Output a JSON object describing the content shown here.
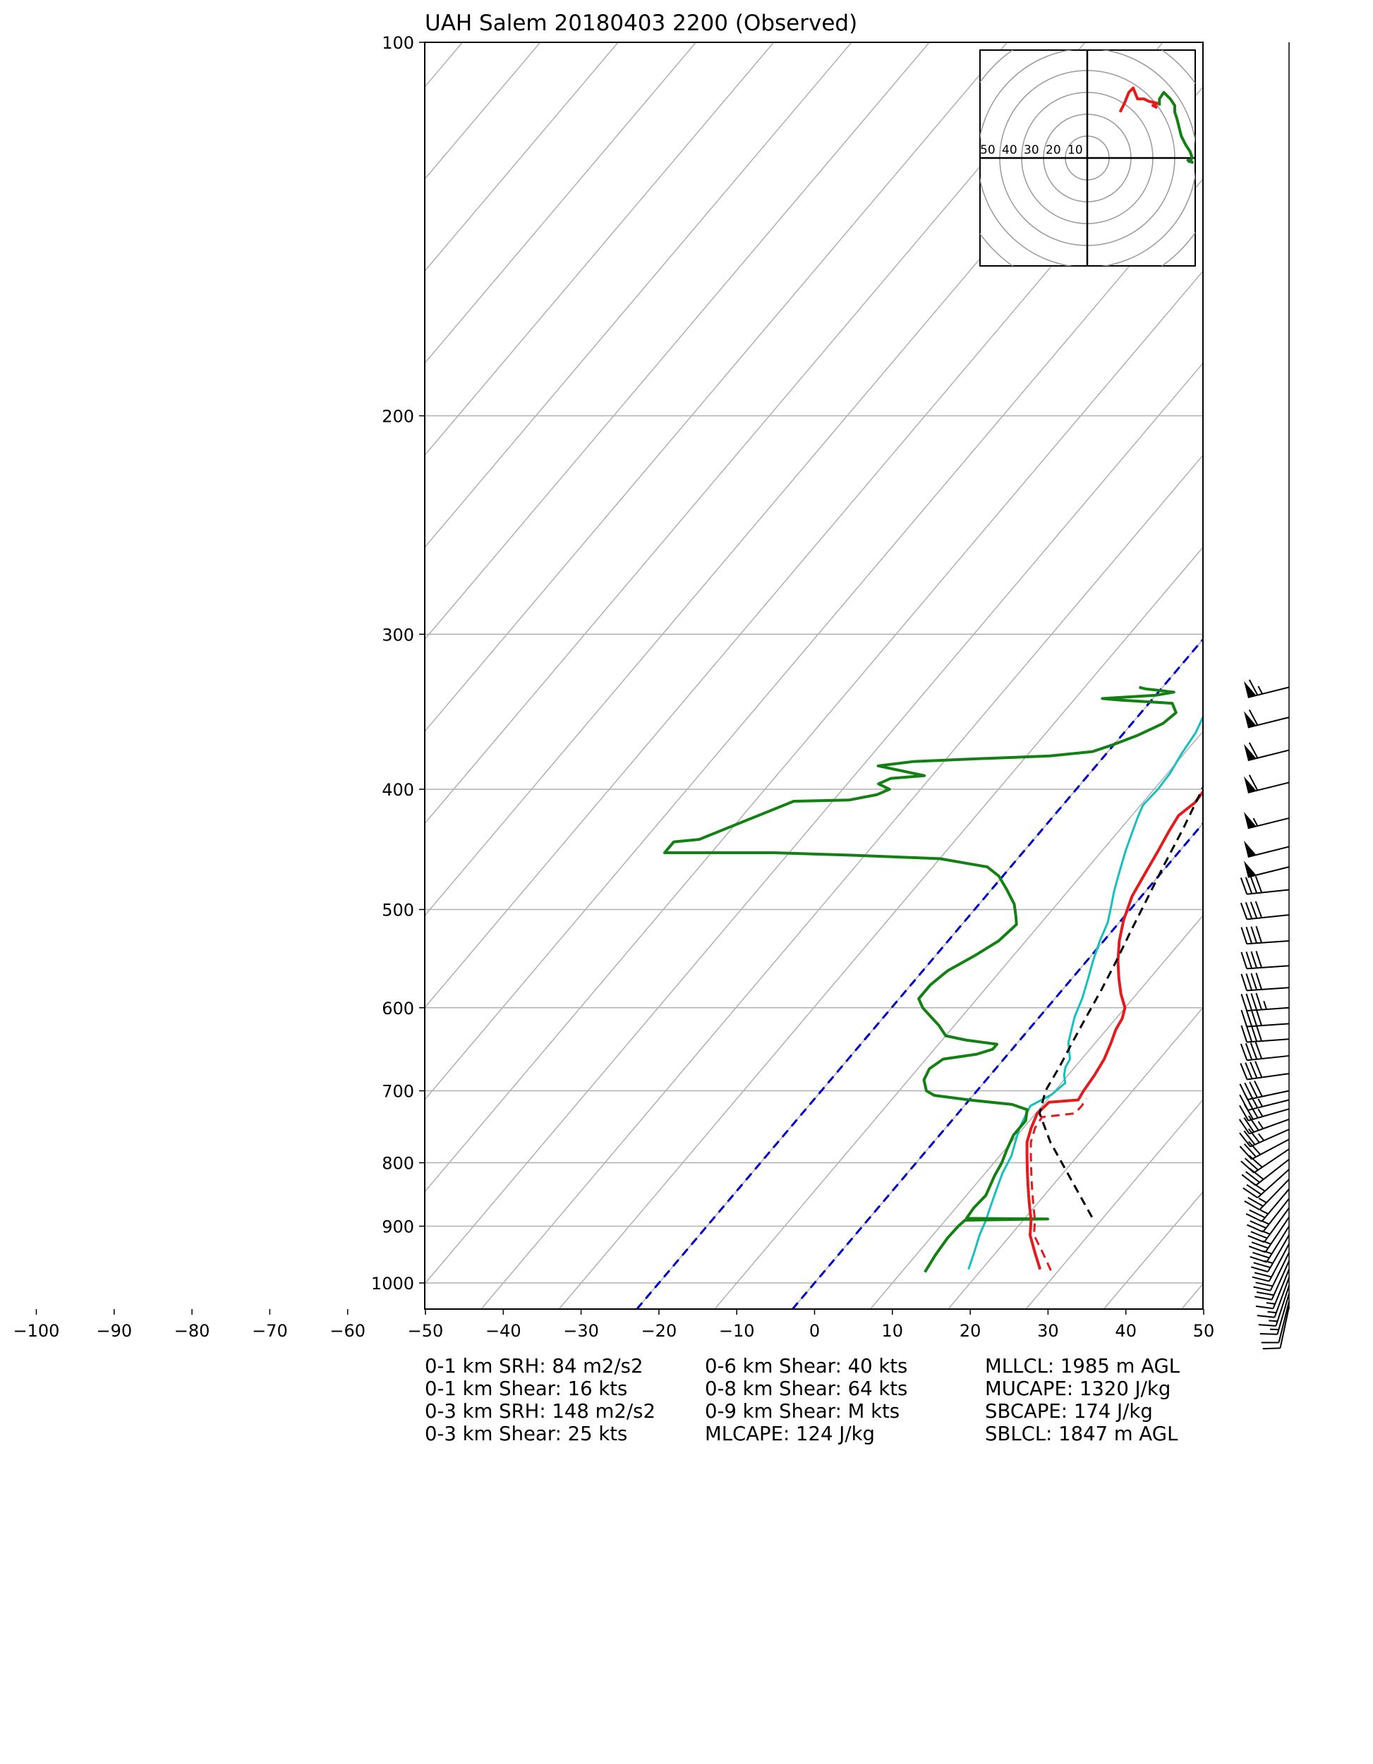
{
  "title": "UAH Salem 20180403 2200   (Observed)",
  "chart_data": {
    "type": "skew-t log-p sounding",
    "title": "UAH Salem 20180403 2200   (Observed)",
    "x_axis": {
      "label": "",
      "range": [
        -100,
        50
      ],
      "ticks": [
        "−100",
        "−90",
        "−80",
        "−70",
        "−60",
        "−50",
        "−40",
        "−30",
        "−20",
        "−10",
        "0",
        "10",
        "20",
        "30",
        "40",
        "50"
      ]
    },
    "y_axis": {
      "label": "",
      "scale": "log",
      "range": [
        1050,
        100
      ],
      "ticks": [
        "100",
        "200",
        "300",
        "400",
        "500",
        "600",
        "700",
        "800",
        "900",
        "1000"
      ]
    },
    "grid": true,
    "colors": {
      "temperature": "#e41a1c",
      "dewpoint": "#138013",
      "wetbulb": "#17bfbf",
      "parcel": "#000000",
      "dashed_lines": "#0000cc",
      "grid": "#b0b0b0"
    },
    "series": [
      {
        "name": "",
        "role": "temperature",
        "color": "#e41a1c",
        "points": [
          [
            27.5,
            975
          ],
          [
            25,
            945
          ],
          [
            22.5,
            915
          ],
          [
            21,
            890
          ],
          [
            19.5,
            870
          ],
          [
            18,
            850
          ],
          [
            16.5,
            830
          ],
          [
            15,
            810
          ],
          [
            13.5,
            790
          ],
          [
            12,
            770
          ],
          [
            11,
            750
          ],
          [
            10.2,
            730
          ],
          [
            10.5,
            715
          ],
          [
            14,
            712
          ],
          [
            13.7,
            700
          ],
          [
            13.4,
            680
          ],
          [
            12.9,
            660
          ],
          [
            12,
            640
          ],
          [
            11.2,
            625
          ],
          [
            10.8,
            612
          ],
          [
            10,
            600
          ],
          [
            8,
            585
          ],
          [
            6,
            568
          ],
          [
            4,
            550
          ],
          [
            2,
            530
          ],
          [
            0.3,
            510
          ],
          [
            -1.2,
            488
          ],
          [
            -2,
            468
          ],
          [
            -2.8,
            448
          ],
          [
            -3.5,
            433
          ],
          [
            -4,
            420
          ],
          [
            -3.3,
            410
          ],
          [
            -3.5,
            398
          ],
          [
            -3.8,
            385
          ],
          [
            -5,
            372
          ],
          [
            -6,
            360
          ],
          [
            -7.2,
            348
          ],
          [
            -7.5,
            338
          ],
          [
            -8.2,
            331
          ]
        ]
      },
      {
        "name": "",
        "role": "temperature_dashed",
        "color": "#e41a1c",
        "points": [
          [
            29,
            977
          ],
          [
            26,
            945
          ],
          [
            23,
            915
          ],
          [
            21.5,
            890
          ],
          [
            20,
            870
          ],
          [
            18.5,
            850
          ],
          [
            17,
            830
          ],
          [
            15.5,
            810
          ],
          [
            14,
            790
          ],
          [
            12.5,
            770
          ],
          [
            11.5,
            750
          ],
          [
            11.2,
            735
          ],
          [
            15,
            730
          ],
          [
            15.1,
            720
          ],
          [
            14.9,
            710
          ]
        ]
      },
      {
        "name": "",
        "role": "dewpoint",
        "color": "#138013",
        "points": [
          [
            13,
            980
          ],
          [
            12.5,
            950
          ],
          [
            12.2,
            920
          ],
          [
            12.3,
            900
          ],
          [
            12.5,
            890
          ],
          [
            23,
            888
          ],
          [
            12.5,
            887
          ],
          [
            12.3,
            870
          ],
          [
            12.5,
            850
          ],
          [
            11.5,
            820
          ],
          [
            11,
            800
          ],
          [
            10.2,
            780
          ],
          [
            9.5,
            760
          ],
          [
            9.5,
            740
          ],
          [
            8.5,
            725
          ],
          [
            6,
            718
          ],
          [
            0,
            712
          ],
          [
            -5,
            706
          ],
          [
            -6.5,
            700
          ],
          [
            -8,
            686
          ],
          [
            -8.5,
            672
          ],
          [
            -7.8,
            660
          ],
          [
            -4,
            654
          ],
          [
            -2.5,
            648
          ],
          [
            -2.5,
            642
          ],
          [
            -7,
            637
          ],
          [
            -10,
            632
          ],
          [
            -12,
            620
          ],
          [
            -14,
            610
          ],
          [
            -16,
            600
          ],
          [
            -17.5,
            590
          ],
          [
            -17.5,
            575
          ],
          [
            -16.8,
            560
          ],
          [
            -15,
            545
          ],
          [
            -13.5,
            530
          ],
          [
            -13,
            514
          ],
          [
            -14,
            506
          ],
          [
            -15.5,
            495
          ],
          [
            -18,
            482
          ],
          [
            -20.5,
            470
          ],
          [
            -23,
            462
          ],
          [
            -30,
            455
          ],
          [
            -42,
            452
          ],
          [
            -52,
            450
          ],
          [
            -58,
            450
          ],
          [
            -62,
            450
          ],
          [
            -66,
            450
          ],
          [
            -66,
            441
          ],
          [
            -63,
            439
          ],
          [
            -55,
            409
          ],
          [
            -48,
            408
          ],
          [
            -45,
            404
          ],
          [
            -44,
            400
          ],
          [
            -46,
            396
          ],
          [
            -45,
            392
          ],
          [
            -41,
            390
          ],
          [
            -46,
            385
          ],
          [
            -48,
            383
          ],
          [
            -44,
            380
          ],
          [
            -36,
            378
          ],
          [
            -27,
            376
          ],
          [
            -22,
            373
          ],
          [
            -20,
            368
          ],
          [
            -18,
            362
          ],
          [
            -16,
            354
          ],
          [
            -15.5,
            347
          ],
          [
            -17,
            341
          ],
          [
            -24,
            339
          ],
          [
            -26.5,
            338
          ],
          [
            -20,
            336
          ],
          [
            -18,
            334
          ],
          [
            -22,
            332
          ],
          [
            -23,
            331
          ]
        ]
      },
      {
        "name": "",
        "role": "wetbulb",
        "color": "#17bfbf",
        "points": [
          [
            18.3,
            975
          ],
          [
            17.2,
            945
          ],
          [
            16,
            915
          ],
          [
            15.2,
            890
          ],
          [
            14.2,
            865
          ],
          [
            13.2,
            840
          ],
          [
            12.2,
            815
          ],
          [
            11.5,
            790
          ],
          [
            10.5,
            770
          ],
          [
            9.5,
            750
          ],
          [
            9,
            735
          ],
          [
            8.5,
            720
          ],
          [
            10,
            705
          ],
          [
            10.5,
            690
          ],
          [
            9.5,
            680
          ],
          [
            8.8,
            670
          ],
          [
            8.5,
            660
          ],
          [
            7.5,
            650
          ],
          [
            6.5,
            640
          ],
          [
            5.5,
            625
          ],
          [
            4.5,
            610
          ],
          [
            3.5,
            590
          ],
          [
            2.2,
            570
          ],
          [
            0.8,
            550
          ],
          [
            -0.5,
            530
          ],
          [
            -1.5,
            512
          ],
          [
            -2.8,
            497
          ],
          [
            -4,
            484
          ],
          [
            -5,
            472
          ],
          [
            -6,
            460
          ],
          [
            -7,
            448
          ],
          [
            -8,
            435
          ],
          [
            -9,
            422
          ],
          [
            -9.7,
            412
          ],
          [
            -9.5,
            400
          ],
          [
            -9.7,
            388
          ],
          [
            -10.3,
            375
          ],
          [
            -10.8,
            360
          ],
          [
            -11.7,
            348
          ],
          [
            -12,
            341
          ],
          [
            -12.6,
            332
          ]
        ]
      },
      {
        "name": "",
        "role": "parcel",
        "color": "#000000",
        "points": [
          [
            28.5,
            885
          ],
          [
            15,
            770
          ],
          [
            10.5,
            730
          ],
          [
            8.8,
            700
          ],
          [
            8,
            670
          ],
          [
            7,
            640
          ],
          [
            6,
            610
          ],
          [
            5,
            580
          ],
          [
            3.8,
            550
          ],
          [
            2.4,
            520
          ],
          [
            1,
            490
          ],
          [
            -0.5,
            460
          ],
          [
            -2,
            430
          ],
          [
            -3.5,
            405
          ],
          [
            -5.2,
            380
          ],
          [
            -7,
            355
          ],
          [
            -8,
            332
          ]
        ]
      }
    ],
    "dashed_lines": [
      {
        "color": "#0000cc",
        "points": [
          [
            -20,
            1050
          ],
          [
            -20,
            100
          ]
        ]
      },
      {
        "color": "#0000cc",
        "points": [
          [
            0,
            1050
          ],
          [
            0,
            100
          ]
        ]
      }
    ],
    "isotherms_C": [
      -180,
      -170,
      -160,
      -150,
      -140,
      -130,
      -120,
      -110,
      -100,
      -90,
      -80,
      -70,
      -60,
      -50,
      -40,
      -30,
      -20,
      -10,
      0,
      10,
      20,
      30,
      40,
      50
    ],
    "hodograph": {
      "rings": [
        10,
        20,
        30,
        40,
        50
      ],
      "ring_labels": [
        "50",
        "40",
        "30",
        "20",
        "10"
      ],
      "red": [
        [
          15,
          21
        ],
        [
          17,
          25
        ],
        [
          19,
          30
        ],
        [
          21,
          32
        ],
        [
          23,
          27
        ],
        [
          26,
          27
        ],
        [
          28,
          26
        ],
        [
          32,
          25
        ],
        [
          30,
          24
        ],
        [
          32,
          23
        ]
      ],
      "green": [
        [
          33,
          24
        ],
        [
          33,
          27
        ],
        [
          35,
          30
        ],
        [
          38,
          27
        ],
        [
          40,
          24
        ],
        [
          40,
          21
        ],
        [
          41,
          18
        ],
        [
          42,
          14
        ],
        [
          43,
          10
        ],
        [
          45,
          6
        ],
        [
          47,
          3
        ],
        [
          48,
          0
        ],
        [
          47,
          -1
        ],
        [
          48,
          -2
        ],
        [
          46,
          -1
        ],
        [
          47,
          -2
        ]
      ]
    },
    "wind_barbs": [
      {
        "p": 331,
        "speed": 65,
        "dir": 256
      },
      {
        "p": 350,
        "speed": 60,
        "dir": 256
      },
      {
        "p": 372,
        "speed": 60,
        "dir": 256
      },
      {
        "p": 395,
        "speed": 60,
        "dir": 256
      },
      {
        "p": 422,
        "speed": 55,
        "dir": 256
      },
      {
        "p": 445,
        "speed": 50,
        "dir": 256
      },
      {
        "p": 462,
        "speed": 50,
        "dir": 256
      },
      {
        "p": 482,
        "speed": 40,
        "dir": 264
      },
      {
        "p": 505,
        "speed": 40,
        "dir": 264
      },
      {
        "p": 530,
        "speed": 40,
        "dir": 266
      },
      {
        "p": 555,
        "speed": 40,
        "dir": 266
      },
      {
        "p": 578,
        "speed": 40,
        "dir": 266
      },
      {
        "p": 600,
        "speed": 45,
        "dir": 266
      },
      {
        "p": 618,
        "speed": 40,
        "dir": 266
      },
      {
        "p": 636,
        "speed": 40,
        "dir": 266
      },
      {
        "p": 656,
        "speed": 40,
        "dir": 264
      },
      {
        "p": 678,
        "speed": 40,
        "dir": 262
      },
      {
        "p": 700,
        "speed": 40,
        "dir": 258
      },
      {
        "p": 712,
        "speed": 35,
        "dir": 256
      },
      {
        "p": 724,
        "speed": 35,
        "dir": 254
      },
      {
        "p": 738,
        "speed": 35,
        "dir": 250
      },
      {
        "p": 752,
        "speed": 35,
        "dir": 246
      },
      {
        "p": 766,
        "speed": 30,
        "dir": 242
      },
      {
        "p": 780,
        "speed": 30,
        "dir": 236
      },
      {
        "p": 795,
        "speed": 30,
        "dir": 232
      },
      {
        "p": 810,
        "speed": 30,
        "dir": 228
      },
      {
        "p": 825,
        "speed": 25,
        "dir": 224
      },
      {
        "p": 840,
        "speed": 25,
        "dir": 220
      },
      {
        "p": 855,
        "speed": 25,
        "dir": 218
      },
      {
        "p": 870,
        "speed": 25,
        "dir": 216
      },
      {
        "p": 885,
        "speed": 25,
        "dir": 214
      },
      {
        "p": 900,
        "speed": 25,
        "dir": 212
      },
      {
        "p": 915,
        "speed": 25,
        "dir": 210
      },
      {
        "p": 930,
        "speed": 20,
        "dir": 208
      },
      {
        "p": 945,
        "speed": 20,
        "dir": 206
      },
      {
        "p": 960,
        "speed": 20,
        "dir": 204
      },
      {
        "p": 975,
        "speed": 15,
        "dir": 202
      },
      {
        "p": 990,
        "speed": 15,
        "dir": 200
      },
      {
        "p": 1005,
        "speed": 15,
        "dir": 198
      },
      {
        "p": 1020,
        "speed": 15,
        "dir": 196
      },
      {
        "p": 1035,
        "speed": 10,
        "dir": 194
      },
      {
        "p": 1045,
        "speed": 10,
        "dir": 192
      }
    ]
  },
  "stats": {
    "col1": [
      "0-1 km SRH: 84 m2/s2",
      "0-1 km Shear: 16 kts",
      "0-3 km SRH: 148 m2/s2",
      "0-3 km Shear: 25 kts"
    ],
    "col2": [
      "0-6 km Shear: 40 kts",
      "0-8 km Shear: 64 kts",
      "0-9 km Shear: M kts",
      "MLCAPE: 124 J/kg"
    ],
    "col3": [
      "MLLCL: 1985 m AGL",
      "MUCAPE: 1320 J/kg",
      "SBCAPE: 174 J/kg",
      "SBLCL: 1847 m AGL"
    ]
  }
}
